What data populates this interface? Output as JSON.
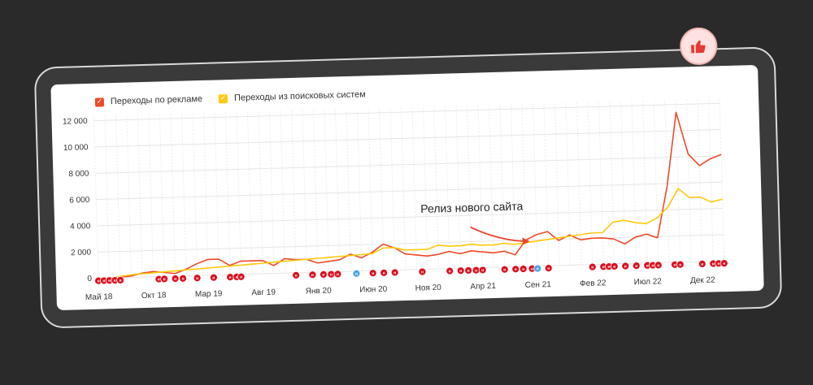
{
  "chart_data": {
    "type": "line",
    "ylim": [
      0,
      12000
    ],
    "yticks": [
      "12 000",
      "10 000",
      "8 000",
      "6 000",
      "4 000",
      "2 000",
      "0"
    ],
    "ytick_values": [
      12000,
      10000,
      8000,
      6000,
      4000,
      2000,
      0
    ],
    "x_labels": [
      "Май 18",
      "Окт 18",
      "Мар 19",
      "Авг 19",
      "Янв 20",
      "Июн 20",
      "Ноя 20",
      "Апр 21",
      "Сен 21",
      "Фев 22",
      "Июл 22",
      "Дек 22"
    ],
    "x_label_months": [
      0,
      5,
      10,
      15,
      20,
      25,
      30,
      35,
      40,
      45,
      50,
      55
    ],
    "x_months_total": 57,
    "grid": true,
    "legend_position": "top-left",
    "series": [
      {
        "name": "Переходы по рекламе",
        "color": "#ee4a2a",
        "values": [
          0,
          0,
          50,
          100,
          300,
          400,
          300,
          200,
          500,
          900,
          1200,
          1200,
          700,
          1000,
          1000,
          1000,
          600,
          1100,
          1000,
          1000,
          700,
          800,
          900,
          1300,
          1000,
          1400,
          2000,
          1700,
          1200,
          1100,
          1000,
          1100,
          1300,
          1100,
          1300,
          1200,
          1100,
          1200,
          900,
          2000,
          2400,
          2600,
          1900,
          2300,
          1900,
          2000,
          2000,
          1900,
          1500,
          2000,
          2200,
          1900,
          5800,
          11400,
          8200,
          7300,
          7800,
          8100
        ]
      },
      {
        "name": "Переходы из поисковых систем",
        "color": "#ffc90e",
        "values": [
          0,
          0,
          100,
          200,
          250,
          300,
          350,
          400,
          450,
          500,
          550,
          600,
          650,
          700,
          750,
          800,
          850,
          900,
          950,
          1000,
          1050,
          1100,
          1150,
          1200,
          1250,
          1300,
          1700,
          1700,
          1500,
          1500,
          1500,
          1800,
          1700,
          1700,
          1800,
          1700,
          1700,
          1800,
          1700,
          1800,
          1900,
          2000,
          2100,
          2200,
          2300,
          2400,
          2400,
          3200,
          3300,
          3100,
          3000,
          3400,
          4200,
          5600,
          4900,
          4900,
          4500,
          4700
        ]
      }
    ],
    "annotations": [
      "Релиз нового сайта"
    ],
    "event_markers": {
      "label": "н",
      "red_color": "#d8101e",
      "blue_color": "#4aa4e6",
      "red_months": [
        0,
        0.5,
        1,
        1.5,
        2,
        5.5,
        6,
        7,
        7.7,
        9,
        10.5,
        12,
        12.6,
        13,
        18,
        19.5,
        20.5,
        21.2,
        21.8,
        25,
        26,
        27,
        29.5,
        32,
        33,
        33.7,
        34.4,
        35,
        37,
        38,
        38.7,
        39.5,
        41,
        45,
        46,
        46.5,
        47,
        48,
        49,
        50,
        50.5,
        51,
        52.5,
        53,
        55,
        56,
        56.5,
        57
      ],
      "blue_months": [
        23.5,
        40
      ]
    }
  },
  "legend": {
    "ads_label": "Переходы по рекламе",
    "search_label": "Переходы из поисковых систем",
    "check_glyph": "✓"
  },
  "annotation": {
    "text": "Релиз нового сайта"
  },
  "badge": {
    "icon": "thumbs-up-icon"
  }
}
